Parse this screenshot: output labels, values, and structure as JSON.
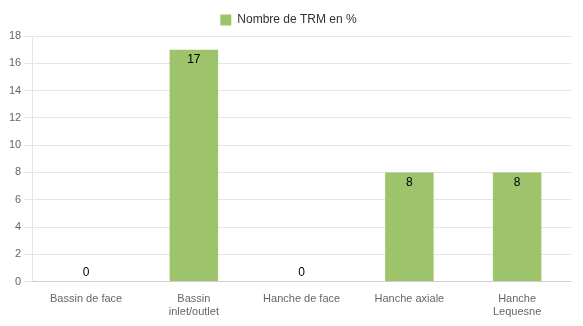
{
  "chart_data": {
    "type": "bar",
    "categories": [
      "Bassin de face",
      "Bassin\ninlet/outlet",
      "Hanche de face",
      "Hanche axiale",
      "Hanche\nLequesne"
    ],
    "series": [
      {
        "name": "Nombre de TRM en %",
        "color": "#9dc36b",
        "values": [
          0,
          17,
          0,
          8,
          8
        ]
      }
    ],
    "ylim": [
      0,
      18
    ],
    "yticks": [
      0,
      2,
      4,
      6,
      8,
      10,
      12,
      14,
      16,
      18
    ],
    "grid": true,
    "legend": "top",
    "data_labels": true
  }
}
